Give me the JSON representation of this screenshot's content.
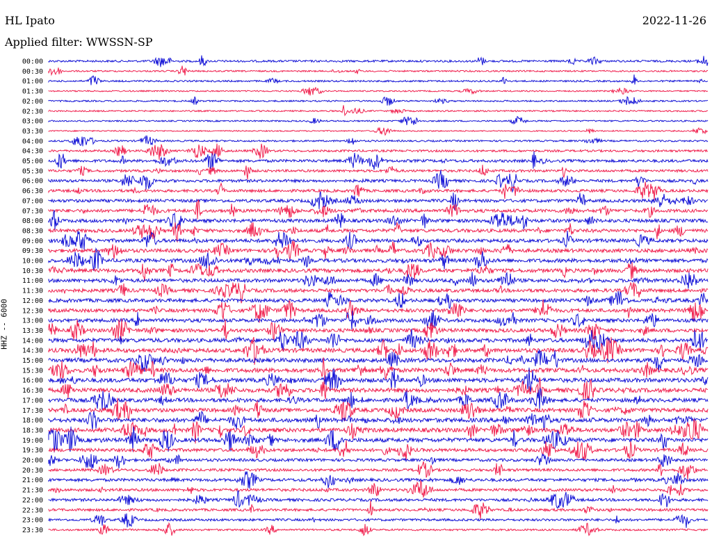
{
  "header": {
    "station": "HL Ipato",
    "date": "2022-11-26",
    "filter_label": "Applied filter: WWSSN-SP",
    "channel_label": "HHZ -- 6000"
  },
  "colors": {
    "trace_a": "#1212d6",
    "trace_b": "#f0204e",
    "background": "#ffffff"
  },
  "chart_data": {
    "type": "line",
    "title": "HL Ipato",
    "subtitle": "Applied filter: WWSSN-SP",
    "ylabel": "HHZ -- 6000",
    "xlabel": "",
    "grid": false,
    "rows": [
      {
        "label": "00:00",
        "activity": 0.3
      },
      {
        "label": "00:30",
        "activity": 0.15
      },
      {
        "label": "01:00",
        "activity": 0.2
      },
      {
        "label": "01:30",
        "activity": 0.08
      },
      {
        "label": "02:00",
        "activity": 0.15
      },
      {
        "label": "02:30",
        "activity": 0.12
      },
      {
        "label": "03:00",
        "activity": 0.12
      },
      {
        "label": "03:30",
        "activity": 0.05
      },
      {
        "label": "04:00",
        "activity": 0.2
      },
      {
        "label": "04:30",
        "activity": 0.35
      },
      {
        "label": "05:00",
        "activity": 0.55
      },
      {
        "label": "05:30",
        "activity": 0.45
      },
      {
        "label": "06:00",
        "activity": 0.55
      },
      {
        "label": "06:30",
        "activity": 0.55
      },
      {
        "label": "07:00",
        "activity": 0.65
      },
      {
        "label": "07:30",
        "activity": 0.7
      },
      {
        "label": "08:00",
        "activity": 0.75
      },
      {
        "label": "08:30",
        "activity": 0.75
      },
      {
        "label": "09:00",
        "activity": 0.8
      },
      {
        "label": "09:30",
        "activity": 0.8
      },
      {
        "label": "10:00",
        "activity": 0.85
      },
      {
        "label": "10:30",
        "activity": 0.85
      },
      {
        "label": "11:00",
        "activity": 0.8
      },
      {
        "label": "11:30",
        "activity": 0.8
      },
      {
        "label": "12:00",
        "activity": 0.8
      },
      {
        "label": "12:30",
        "activity": 0.8
      },
      {
        "label": "13:00",
        "activity": 0.8
      },
      {
        "label": "13:30",
        "activity": 0.85
      },
      {
        "label": "14:00",
        "activity": 0.9
      },
      {
        "label": "14:30",
        "activity": 0.95
      },
      {
        "label": "15:00",
        "activity": 0.95
      },
      {
        "label": "15:30",
        "activity": 1.0
      },
      {
        "label": "16:00",
        "activity": 1.0
      },
      {
        "label": "16:30",
        "activity": 1.0
      },
      {
        "label": "17:00",
        "activity": 0.9
      },
      {
        "label": "17:30",
        "activity": 0.9
      },
      {
        "label": "18:00",
        "activity": 1.0
      },
      {
        "label": "18:30",
        "activity": 1.0
      },
      {
        "label": "19:00",
        "activity": 0.95
      },
      {
        "label": "19:30",
        "activity": 0.7
      },
      {
        "label": "20:00",
        "activity": 0.55
      },
      {
        "label": "20:30",
        "activity": 0.5
      },
      {
        "label": "21:00",
        "activity": 0.6
      },
      {
        "label": "21:30",
        "activity": 0.55
      },
      {
        "label": "22:00",
        "activity": 0.55
      },
      {
        "label": "22:30",
        "activity": 0.45
      },
      {
        "label": "23:00",
        "activity": 0.4
      },
      {
        "label": "23:30",
        "activity": 0.25
      }
    ]
  }
}
